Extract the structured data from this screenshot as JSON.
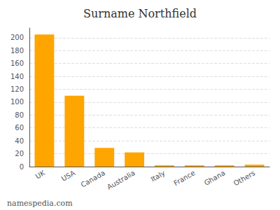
{
  "chart_data": {
    "type": "bar",
    "title": "Surname Northfield",
    "categories": [
      "UK",
      "USA",
      "Canada",
      "Australia",
      "Italy",
      "France",
      "Ghana",
      "Others"
    ],
    "values": [
      205,
      110,
      29,
      22,
      2,
      2,
      2,
      3
    ],
    "color": "#FFA500",
    "ylim": [
      0,
      215
    ],
    "yticks": [
      0,
      20,
      40,
      60,
      80,
      100,
      120,
      140,
      160,
      180,
      200
    ],
    "grid": true,
    "annotations": [
      "namespedia.com"
    ]
  }
}
